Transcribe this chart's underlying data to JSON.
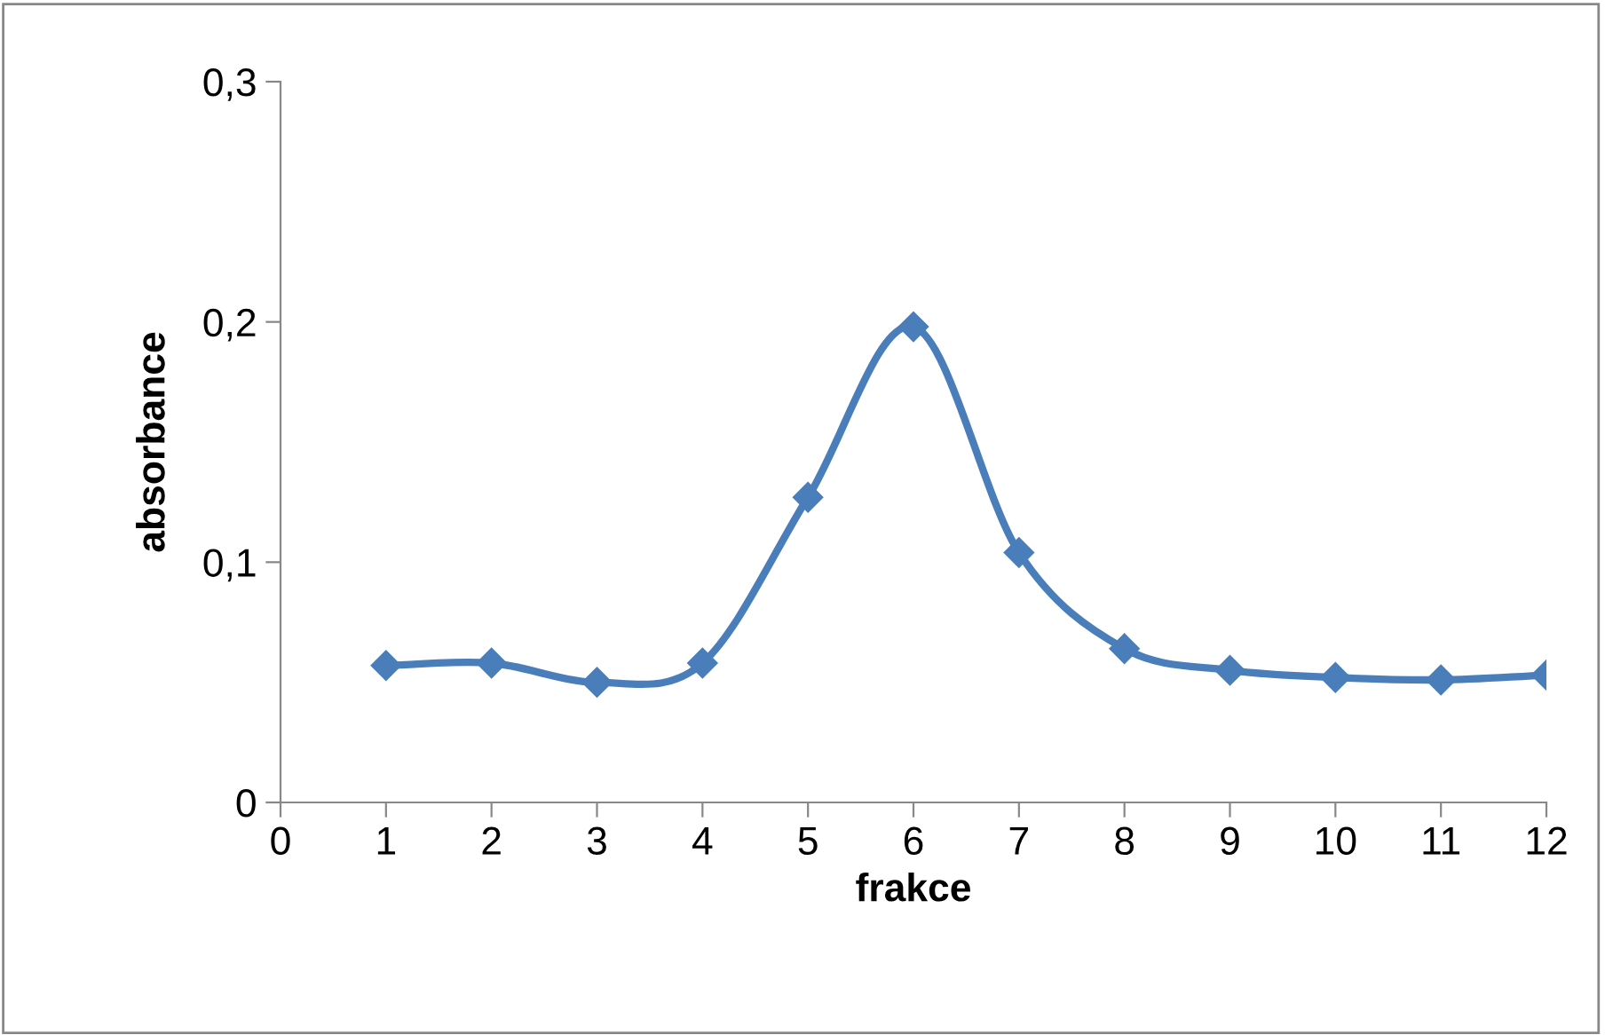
{
  "chart_data": {
    "type": "line",
    "xlabel": "frakce",
    "ylabel": "absorbance",
    "x": [
      1,
      2,
      3,
      4,
      5,
      6,
      7,
      8,
      9,
      10,
      11,
      12
    ],
    "series": [
      {
        "color": "#4a7ebb",
        "values": [
          0.057,
          0.058,
          0.05,
          0.058,
          0.127,
          0.198,
          0.104,
          0.064,
          0.055,
          0.052,
          0.051,
          0.053
        ]
      }
    ],
    "xlim": [
      0,
      12
    ],
    "xticks": [
      0,
      1,
      2,
      3,
      4,
      5,
      6,
      7,
      8,
      9,
      10,
      11,
      12
    ],
    "ylim": [
      0,
      0.3
    ],
    "yticks": [
      {
        "value": 0,
        "label": "0"
      },
      {
        "value": 0.1,
        "label": "0,1"
      },
      {
        "value": 0.2,
        "label": "0,2"
      },
      {
        "value": 0.3,
        "label": "0,3"
      }
    ],
    "grid": false,
    "legend": false,
    "marker": "diamond",
    "line_style": "solid"
  }
}
